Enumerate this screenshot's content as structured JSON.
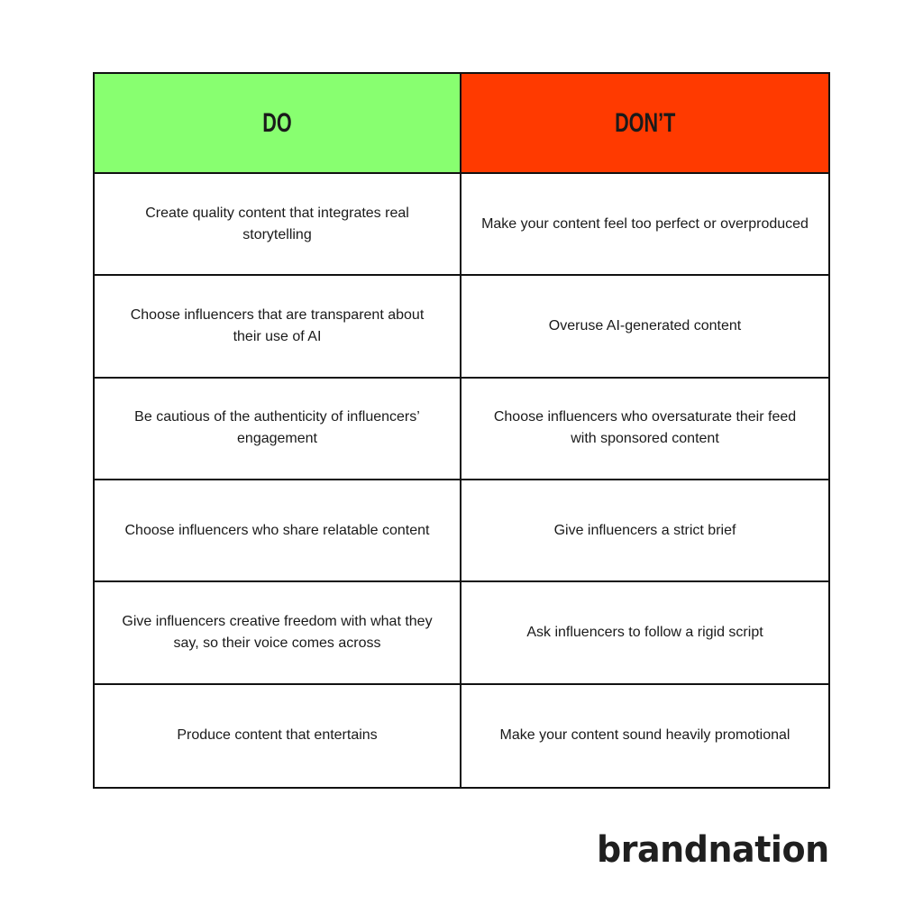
{
  "headers": {
    "do": "DO",
    "dont": "DON’T"
  },
  "colors": {
    "do": "#88ff70",
    "dont": "#ff3a00"
  },
  "rows": [
    {
      "do": "Create quality content that integrates real storytelling",
      "dont": "Make your content feel too perfect or overproduced"
    },
    {
      "do": "Choose influencers that are transparent about their use of AI",
      "dont": "Overuse AI-generated content"
    },
    {
      "do": "Be cautious of the authenticity of influencers’ engagement",
      "dont": "Choose influencers who oversaturate their feed with sponsored content"
    },
    {
      "do": "Choose influencers who share relatable content",
      "dont": "Give influencers a strict brief"
    },
    {
      "do": "Give influencers creative freedom with what they say, so their voice comes across",
      "dont": "Ask influencers to follow a rigid script"
    },
    {
      "do": "Produce content that entertains",
      "dont": "Make your content sound heavily promotional"
    }
  ],
  "logo": "brandnation"
}
